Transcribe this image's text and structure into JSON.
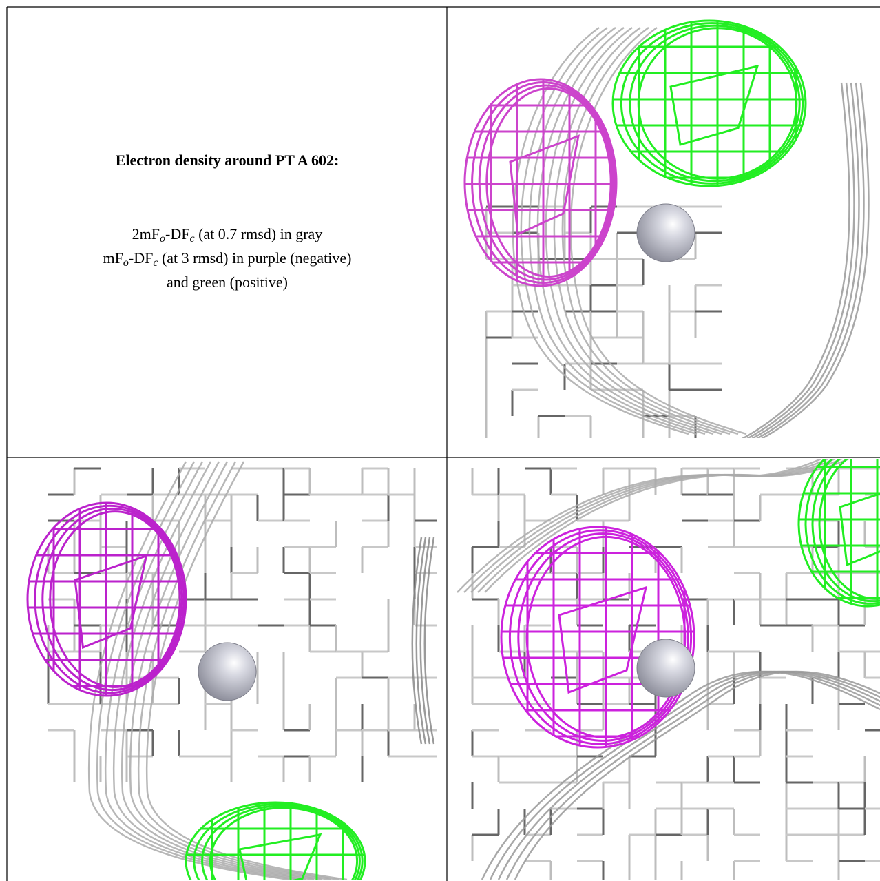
{
  "caption": {
    "title": "Electron density around PT A 602:",
    "lines": [
      {
        "parts": [
          "2mF",
          "o",
          "-DF",
          "c",
          " (at 0.7 rmsd) in gray"
        ]
      },
      {
        "parts": [
          "mF",
          "o",
          "-DF",
          "c",
          " (at 3 rmsd) in purple (negative)"
        ]
      },
      {
        "parts": [
          "and green (positive)"
        ]
      }
    ]
  }
}
